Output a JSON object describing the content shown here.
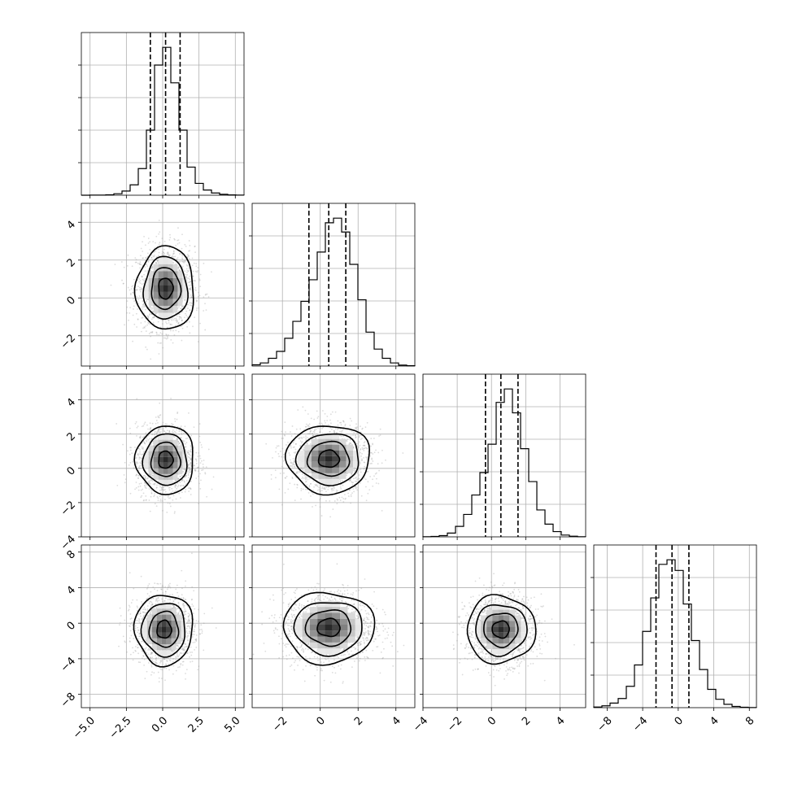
{
  "chart_data": {
    "type": "corner",
    "description": "Corner plot of 4 parameters: 1D histograms on the diagonal with dashed 16/50/84 percentile lines; 2D scatter + 2D histogram + contours in the lower triangle.",
    "parameters": [
      {
        "ticks": [
          -5.0,
          -2.5,
          0.0,
          2.5,
          5.0
        ],
        "tick_labels": [
          "−5.0",
          "−2.5",
          "0.0",
          "2.5",
          "5.0"
        ],
        "range": [
          -5.6,
          5.6
        ]
      },
      {
        "ticks": [
          -2,
          0,
          2,
          4
        ],
        "tick_labels": [
          "−2",
          "0",
          "2",
          "4"
        ],
        "range": [
          -3.6,
          5.0
        ]
      },
      {
        "ticks": [
          -4,
          -2,
          0,
          2,
          4
        ],
        "tick_labels": [
          "−4",
          "−2",
          "0",
          "2",
          "4"
        ],
        "range": [
          -4.0,
          5.5
        ]
      },
      {
        "ticks": [
          -8,
          -4,
          0,
          4,
          8
        ],
        "tick_labels": [
          "−8",
          "−4",
          "0",
          "4",
          "8"
        ],
        "range": [
          -9.5,
          8.8
        ]
      }
    ],
    "diagonal_histograms": [
      {
        "param": 0,
        "bin_edges": [
          -5.6,
          -5.04,
          -4.48,
          -3.92,
          -3.36,
          -2.8,
          -2.24,
          -1.68,
          -1.12,
          -0.56,
          0.0,
          0.56,
          1.12,
          1.68,
          2.24,
          2.8,
          3.36,
          3.92,
          4.48,
          5.04,
          5.6
        ],
        "counts": [
          0,
          1,
          1,
          3,
          10,
          28,
          70,
          180,
          440,
          880,
          1000,
          760,
          440,
          190,
          80,
          35,
          15,
          6,
          2,
          1
        ],
        "quantiles": [
          -0.85,
          0.2,
          1.2
        ]
      },
      {
        "param": 1,
        "bin_edges": [
          -3.6,
          -3.17,
          -2.74,
          -2.31,
          -1.88,
          -1.45,
          -1.02,
          -0.59,
          -0.16,
          0.27,
          0.7,
          1.13,
          1.56,
          1.99,
          2.42,
          2.85,
          3.28,
          3.71,
          4.14,
          4.57,
          5.0
        ],
        "counts": [
          8,
          20,
          50,
          95,
          180,
          290,
          420,
          560,
          740,
          930,
          960,
          870,
          660,
          430,
          220,
          110,
          50,
          20,
          6,
          2
        ],
        "quantiles": [
          -0.6,
          0.45,
          1.35
        ]
      },
      {
        "param": 2,
        "bin_edges": [
          -4.0,
          -3.525,
          -3.05,
          -2.575,
          -2.1,
          -1.625,
          -1.15,
          -0.675,
          -0.2,
          0.275,
          0.75,
          1.225,
          1.7,
          2.175,
          2.65,
          3.125,
          3.6,
          4.075,
          4.55,
          5.025,
          5.5
        ],
        "counts": [
          1,
          3,
          8,
          25,
          70,
          150,
          280,
          430,
          620,
          900,
          990,
          830,
          590,
          370,
          180,
          85,
          35,
          12,
          4,
          1
        ],
        "quantiles": [
          -0.35,
          0.55,
          1.55
        ]
      },
      {
        "param": 3,
        "bin_edges": [
          -9.5,
          -8.585,
          -7.67,
          -6.755,
          -5.84,
          -4.925,
          -4.01,
          -3.095,
          -2.18,
          -1.265,
          -0.35,
          0.565,
          1.48,
          2.395,
          3.31,
          4.225,
          5.14,
          6.055,
          6.97,
          7.885,
          8.8
        ],
        "counts": [
          4,
          12,
          30,
          60,
          140,
          280,
          500,
          720,
          940,
          970,
          900,
          680,
          440,
          250,
          120,
          55,
          22,
          8,
          3,
          1
        ],
        "quantiles": [
          -2.5,
          -0.7,
          1.2
        ]
      }
    ],
    "pair_panels": [
      {
        "row": 1,
        "col": 0,
        "mean": [
          0.2,
          0.5
        ],
        "std": [
          1.0,
          1.1
        ],
        "levels_sigma": [
          0.5,
          1.0,
          1.5,
          2.0
        ]
      },
      {
        "row": 2,
        "col": 0,
        "mean": [
          0.2,
          0.5
        ],
        "std": [
          1.0,
          1.0
        ],
        "levels_sigma": [
          0.5,
          1.0,
          1.5,
          2.0
        ]
      },
      {
        "row": 2,
        "col": 1,
        "mean": [
          0.45,
          0.55
        ],
        "std": [
          1.1,
          1.0
        ],
        "levels_sigma": [
          0.5,
          1.0,
          1.5,
          2.0
        ]
      },
      {
        "row": 3,
        "col": 0,
        "mean": [
          0.1,
          -0.7
        ],
        "std": [
          1.0,
          2.0
        ],
        "levels_sigma": [
          0.5,
          1.0,
          1.5,
          2.0
        ]
      },
      {
        "row": 3,
        "col": 1,
        "mean": [
          0.45,
          -0.5
        ],
        "std": [
          1.2,
          2.0
        ],
        "levels_sigma": [
          0.5,
          1.0,
          1.5,
          2.0
        ]
      },
      {
        "row": 3,
        "col": 2,
        "mean": [
          0.55,
          -0.7
        ],
        "std": [
          1.0,
          1.9
        ],
        "levels_sigma": [
          0.5,
          1.0,
          1.5,
          2.0
        ]
      }
    ],
    "grid": true,
    "colors": {
      "line": "#000000",
      "grid": "#b0b0b0",
      "scatter": "#9a9a9a",
      "hist2d_dark": "#202020"
    }
  }
}
